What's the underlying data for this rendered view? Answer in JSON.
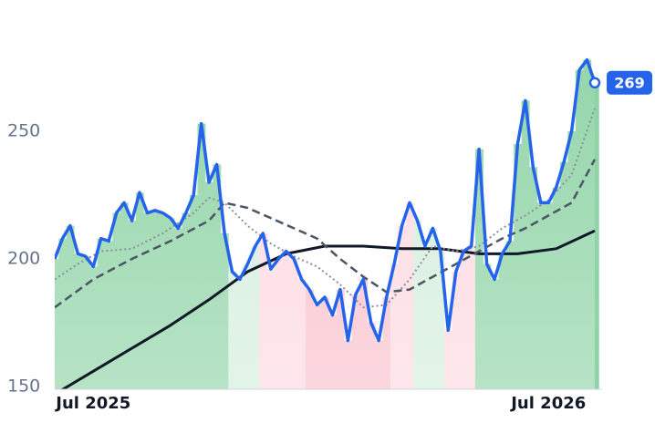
{
  "chart_data": {
    "type": "line",
    "xlim": [
      0,
      70
    ],
    "ylim": [
      150,
      290
    ],
    "yticks": [
      150,
      200,
      250
    ],
    "xticks": [
      {
        "value": 5,
        "label": "Jul 2025"
      },
      {
        "value": 64,
        "label": "Jul 2026"
      }
    ],
    "zones": [
      {
        "from": 0,
        "to": 23,
        "color": "#8fd4a6"
      },
      {
        "from": 23,
        "to": 27,
        "color": "#d3eedc"
      },
      {
        "from": 27,
        "to": 33,
        "color": "#fcd9e0"
      },
      {
        "from": 33,
        "to": 44,
        "color": "#f9c0cc"
      },
      {
        "from": 44,
        "to": 47,
        "color": "#fcd9e0"
      },
      {
        "from": 47,
        "to": 51,
        "color": "#d3eedc"
      },
      {
        "from": 51,
        "to": 55,
        "color": "#fcd9e0"
      },
      {
        "from": 55,
        "to": 70,
        "color": "#8fd4a6"
      }
    ],
    "series": [
      {
        "color": "#2563eb",
        "style": "solid",
        "width": 3.5,
        "x": [
          0,
          1,
          2,
          3,
          4,
          5,
          6,
          7,
          8,
          9,
          10,
          11,
          12,
          13,
          14,
          15,
          16,
          17,
          18,
          19,
          20,
          21,
          22,
          23,
          24,
          25,
          26,
          27,
          28,
          29,
          30,
          31,
          32,
          33,
          34,
          35,
          36,
          37,
          38,
          39,
          40,
          41,
          42,
          43,
          44,
          45,
          46,
          47,
          48,
          49,
          50,
          51,
          52,
          53,
          54,
          55,
          56,
          57,
          58,
          59,
          60,
          61,
          62,
          63,
          64,
          65,
          66,
          67,
          68,
          69,
          70
        ],
        "values": [
          200,
          208,
          213,
          202,
          201,
          197,
          208,
          207,
          218,
          222,
          215,
          226,
          218,
          219,
          218,
          216,
          212,
          218,
          225,
          253,
          230,
          237,
          210,
          195,
          192,
          198,
          205,
          210,
          196,
          200,
          203,
          200,
          192,
          188,
          182,
          185,
          178,
          188,
          168,
          186,
          192,
          175,
          168,
          185,
          198,
          213,
          222,
          215,
          205,
          212,
          203,
          172,
          195,
          203,
          205,
          243,
          198,
          192,
          202,
          207,
          245,
          262,
          236,
          222,
          222,
          228,
          238,
          250,
          274,
          278,
          269
        ]
      },
      {
        "color": "#8a8f99",
        "style": "dotted",
        "width": 2,
        "x": [
          0,
          3,
          6,
          10,
          14,
          18,
          20,
          22,
          25,
          28,
          31,
          34,
          37,
          40,
          43,
          46,
          49,
          52,
          55,
          58,
          61,
          64,
          67,
          70
        ],
        "values": [
          192,
          198,
          203,
          204,
          210,
          218,
          224,
          222,
          213,
          206,
          201,
          197,
          190,
          181,
          182,
          192,
          205,
          203,
          205,
          212,
          217,
          223,
          233,
          259
        ]
      },
      {
        "color": "#4b5563",
        "style": "dashed",
        "width": 2.5,
        "x": [
          0,
          5,
          10,
          15,
          20,
          22,
          25,
          28,
          31,
          34,
          37,
          40,
          43,
          46,
          49,
          52,
          55,
          58,
          61,
          64,
          67,
          70
        ],
        "values": [
          181,
          192,
          200,
          207,
          215,
          222,
          220,
          216,
          212,
          208,
          200,
          193,
          187,
          188,
          193,
          198,
          203,
          208,
          212,
          217,
          222,
          239
        ]
      },
      {
        "color": "#111827",
        "style": "solid",
        "width": 3,
        "x": [
          0,
          5,
          10,
          15,
          20,
          25,
          30,
          35,
          40,
          45,
          50,
          55,
          60,
          65,
          70
        ],
        "values": [
          147,
          156,
          165,
          174,
          184,
          195,
          202,
          205,
          205,
          204,
          204,
          202,
          202,
          204,
          211
        ]
      }
    ],
    "badge_color": "#2563eb"
  }
}
